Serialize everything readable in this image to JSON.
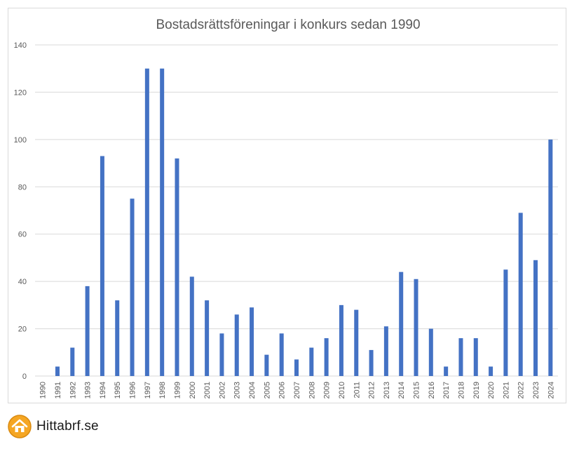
{
  "brand": {
    "name": "Hittabrf.se",
    "logo_icon": "house-logo-icon",
    "logo_color": "#f5a623"
  },
  "chart_data": {
    "type": "bar",
    "title": "Bostadsrättsföreningar i konkurs sedan 1990",
    "xlabel": "",
    "ylabel": "",
    "ylim": [
      0,
      140
    ],
    "yticks": [
      0,
      20,
      40,
      60,
      80,
      100,
      120,
      140
    ],
    "grid": true,
    "legend": "none",
    "bar_color": "#4472c4",
    "categories": [
      "1990",
      "1991",
      "1992",
      "1993",
      "1994",
      "1995",
      "1996",
      "1997",
      "1998",
      "1999",
      "2000",
      "2001",
      "2002",
      "2003",
      "2004",
      "2005",
      "2006",
      "2007",
      "2008",
      "2009",
      "2010",
      "2011",
      "2012",
      "2013",
      "2014",
      "2015",
      "2016",
      "2017",
      "2018",
      "2019",
      "2020",
      "2021",
      "2022",
      "2023",
      "2024"
    ],
    "values": [
      0,
      4,
      12,
      38,
      93,
      32,
      75,
      130,
      130,
      92,
      42,
      32,
      18,
      26,
      29,
      9,
      18,
      7,
      12,
      16,
      30,
      28,
      11,
      21,
      44,
      41,
      20,
      4,
      16,
      16,
      4,
      45,
      69,
      49,
      100
    ]
  }
}
